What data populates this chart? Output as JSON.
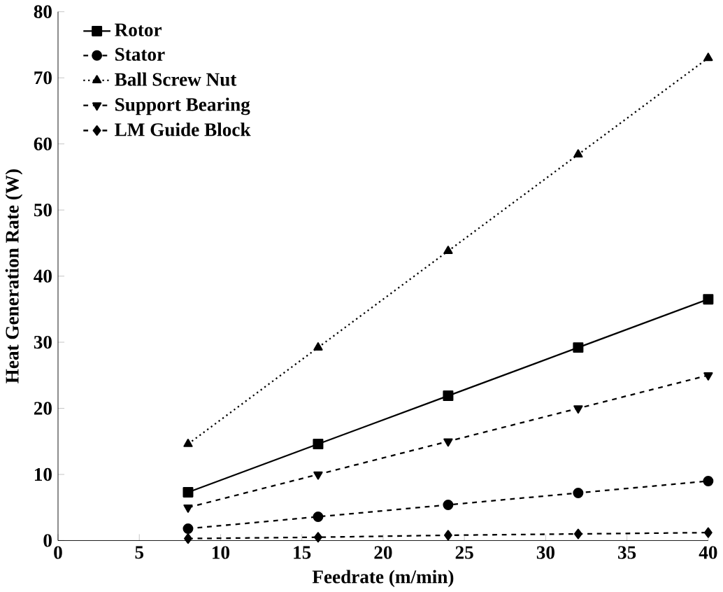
{
  "chart_data": {
    "type": "line",
    "xlabel": "Feedrate (m/min)",
    "ylabel": "Heat Generation Rate (W)",
    "x": [
      8,
      16,
      24,
      32,
      40
    ],
    "series": [
      {
        "name": "Rotor",
        "color": "#000000",
        "marker": "square",
        "line_style": "solid",
        "values": [
          7.3,
          14.6,
          21.9,
          29.2,
          36.5
        ]
      },
      {
        "name": "Stator",
        "color": "#000000",
        "marker": "circle",
        "line_style": "dashed",
        "values": [
          1.8,
          3.6,
          5.4,
          7.2,
          9.0
        ]
      },
      {
        "name": "Ball Screw Nut",
        "color": "#000000",
        "marker": "triangle",
        "line_style": "dotted",
        "values": [
          14.6,
          29.2,
          43.8,
          58.4,
          73
        ]
      },
      {
        "name": "Support Bearing",
        "color": "#000000",
        "marker": "triangle-down",
        "line_style": "dashed",
        "values": [
          5,
          10,
          15,
          20,
          25
        ]
      },
      {
        "name": "LM Guide Block",
        "color": "#000000",
        "marker": "diamond",
        "line_style": "dashed",
        "values": [
          0.3,
          0.5,
          0.8,
          1.0,
          1.2
        ]
      }
    ],
    "xlim": [
      0,
      40
    ],
    "ylim": [
      0,
      80
    ],
    "xticks": [
      0,
      5,
      10,
      15,
      20,
      25,
      30,
      35,
      40
    ],
    "yticks": [
      0,
      10,
      20,
      30,
      40,
      50,
      60,
      70,
      80
    ],
    "grid": false,
    "legend": "top left"
  }
}
